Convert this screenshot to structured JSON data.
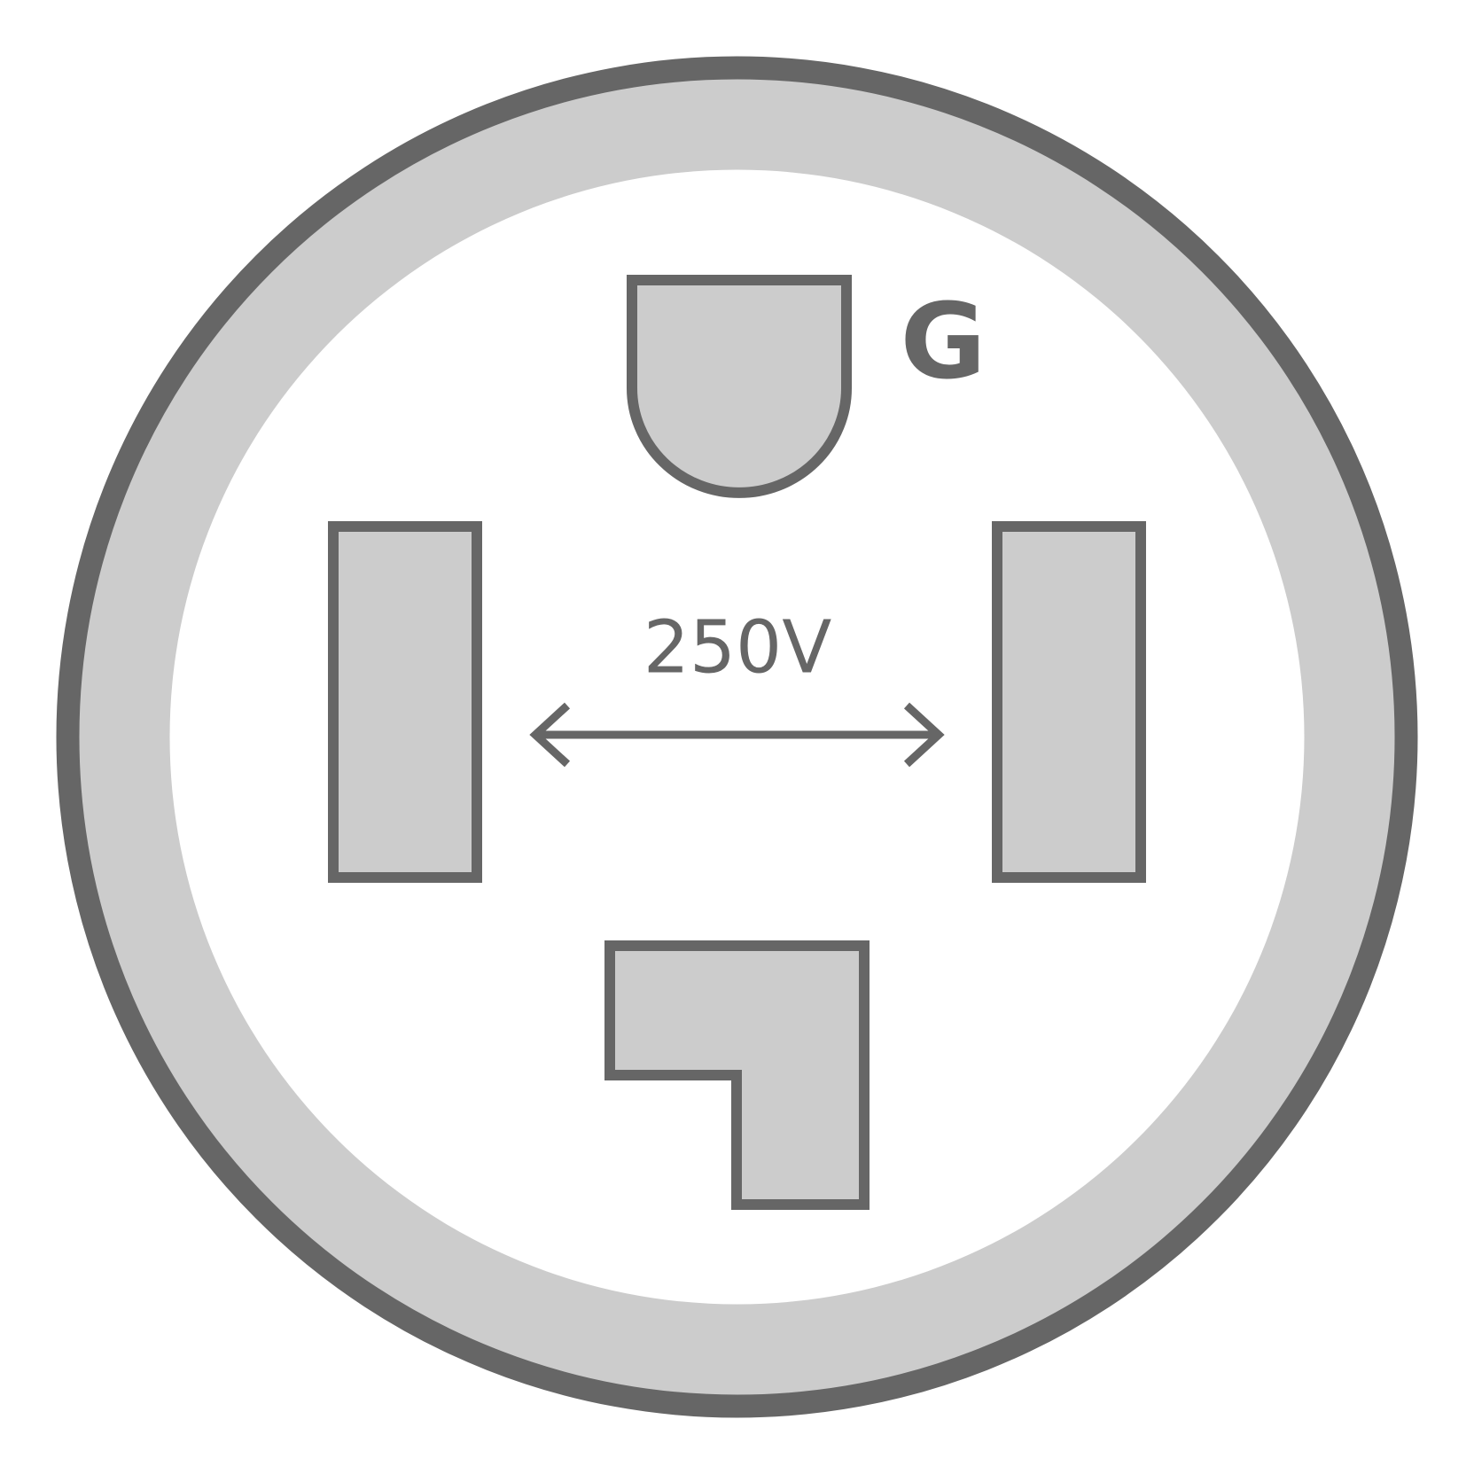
{
  "labels": {
    "ground": "G",
    "voltage": "250V"
  },
  "colors": {
    "outline": "#666666",
    "fill": "#cccccc",
    "background": "#ffffff"
  },
  "icons": {
    "arrow": "double-headed-arrow-icon"
  }
}
